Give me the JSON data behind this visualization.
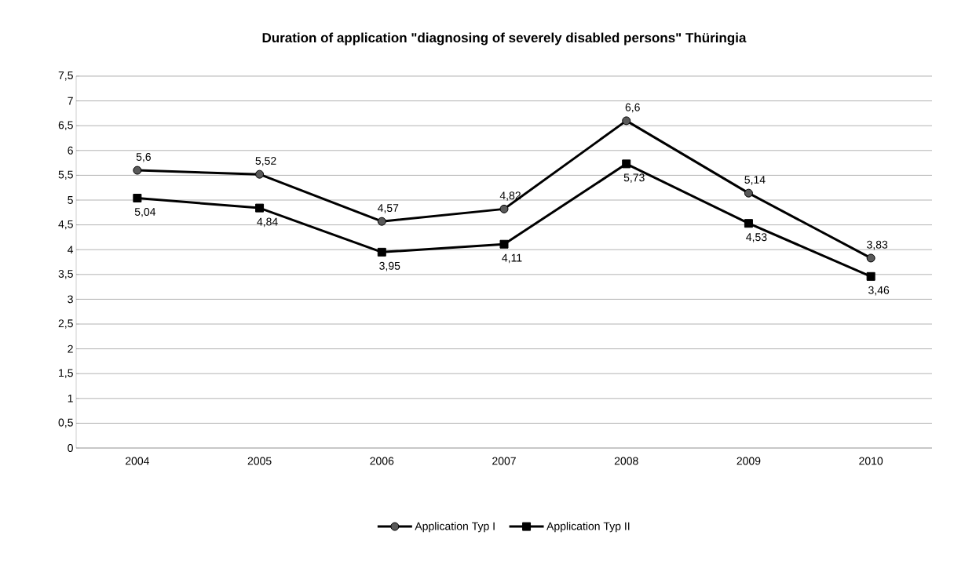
{
  "chart_data": {
    "type": "line",
    "title": "**Duration of application \"diagnosing of severely disabled persons\" Thüringia**",
    "categories": [
      "2004",
      "2005",
      "2006",
      "2007",
      "2008",
      "2009",
      "2010"
    ],
    "series": [
      {
        "name": "Application Typ I",
        "color": "#000000",
        "marker": "circle",
        "values": [
          5.6,
          5.52,
          4.57,
          4.82,
          6.6,
          5.14,
          3.83
        ],
        "value_labels": [
          "5,6",
          "5,52",
          "4,57",
          "4,82",
          "6,6",
          "5,14",
          "3,83"
        ]
      },
      {
        "name": "Application Typ II",
        "color": "#000000",
        "marker": "square",
        "values": [
          5.04,
          4.84,
          3.95,
          4.11,
          5.73,
          4.53,
          3.46
        ],
        "value_labels": [
          "5,04",
          "4,84",
          "3,95",
          "4,11",
          "5,73",
          "4,53",
          "3,46"
        ]
      }
    ],
    "ylim": [
      0,
      7.5
    ],
    "yticks": [
      0,
      {
        "value": 0.5,
        "label": "0,5"
      },
      1,
      {
        "value": 1.5,
        "label": "1,5"
      },
      2,
      {
        "value": 2.5,
        "label": "2,5"
      },
      3,
      {
        "value": 3.5,
        "label": "3,5"
      },
      4,
      {
        "value": 4.5,
        "label": "4,5"
      },
      5,
      {
        "value": 5.5,
        "label": "5,5"
      },
      6,
      {
        "value": 6.5,
        "label": "6,5"
      },
      7,
      {
        "value": 7.5,
        "label": "7,5"
      }
    ],
    "grid": "y",
    "legend": "bottom",
    "line_style": "solid"
  }
}
